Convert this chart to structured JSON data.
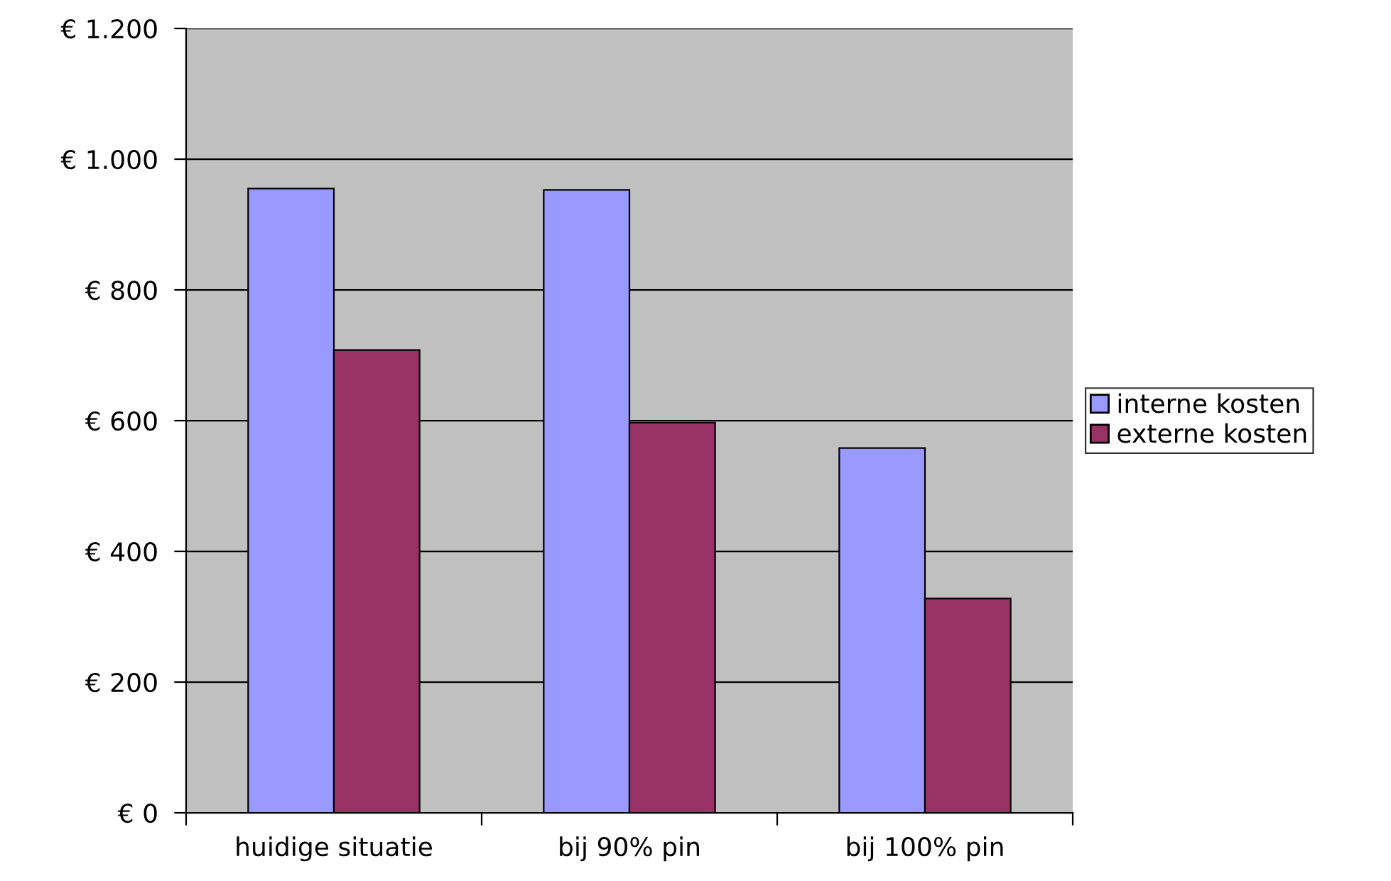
{
  "chart_data": {
    "type": "bar",
    "categories": [
      "huidige situatie",
      "bij 90% pin",
      "bij 100% pin"
    ],
    "series": [
      {
        "name": "interne kosten",
        "color": "#9999ff",
        "values": [
          955,
          953,
          558
        ]
      },
      {
        "name": "externe kosten",
        "color": "#993366",
        "values": [
          708,
          597,
          328
        ]
      }
    ],
    "ylim": [
      0,
      1200
    ],
    "yticks": [
      {
        "value": 0,
        "label": "€ 0"
      },
      {
        "value": 200,
        "label": "€ 200"
      },
      {
        "value": 400,
        "label": "€ 400"
      },
      {
        "value": 600,
        "label": "€ 600"
      },
      {
        "value": 800,
        "label": "€ 800"
      },
      {
        "value": 1000,
        "label": "€ 1.000"
      },
      {
        "value": 1200,
        "label": "€ 1.200"
      }
    ],
    "grid": "y",
    "legend": "right"
  }
}
